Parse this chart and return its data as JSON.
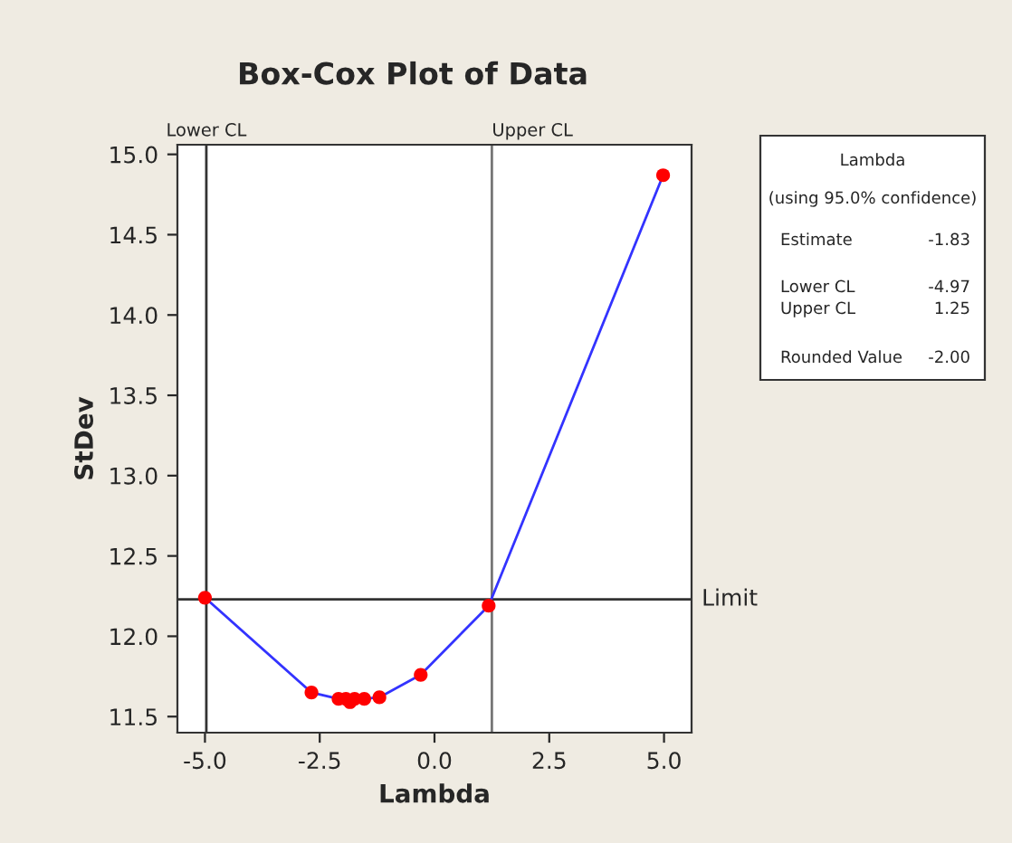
{
  "chart_data": {
    "type": "line",
    "title": "Box-Cox Plot of Data",
    "xlabel": "Lambda",
    "ylabel": "StDev",
    "series": [
      {
        "color": "#3333ff",
        "colors": [
          "#ff0000",
          "#ff0000",
          "#ff0000",
          "#ff0000",
          "#ff0000",
          "#ff0000",
          "#ff0000",
          "#ff0000",
          "#ff0000",
          "#ff0000",
          "#ff0000"
        ],
        "x": [
          -5.0,
          -2.68,
          -2.09,
          -1.93,
          -1.84,
          -1.74,
          -1.53,
          -1.2,
          -0.3,
          1.18,
          4.98
        ],
        "values": [
          12.24,
          11.65,
          11.61,
          11.61,
          11.59,
          11.61,
          11.61,
          11.62,
          11.76,
          12.19,
          14.87
        ]
      }
    ],
    "marker": "circle",
    "grid": false,
    "xlim": [
      -5.6,
      5.6
    ],
    "xticks": [
      {
        "value": -5,
        "label": "-5.0"
      },
      {
        "value": -2.5,
        "label": "-2.5"
      },
      {
        "value": 0,
        "label": "0.0"
      },
      {
        "value": 2.5,
        "label": "2.5"
      },
      {
        "value": 5,
        "label": "5.0"
      }
    ],
    "ylim": [
      11.4,
      15.06
    ],
    "yticks": [
      {
        "value": 11.5,
        "label": "11.5"
      },
      {
        "value": 12,
        "label": "12.0"
      },
      {
        "value": 12.5,
        "label": "12.5"
      },
      {
        "value": 13,
        "label": "13.0"
      },
      {
        "value": 13.5,
        "label": "13.5"
      },
      {
        "value": 14,
        "label": "14.0"
      },
      {
        "value": 14.5,
        "label": "14.5"
      },
      {
        "value": 15,
        "label": "15.0"
      }
    ],
    "ref_lines": [
      {
        "axis": "x",
        "value": -4.97,
        "label": "Lower CL",
        "color": "#333333"
      },
      {
        "axis": "x",
        "value": 1.25,
        "label": "Upper CL",
        "color": "#777777"
      },
      {
        "axis": "y",
        "value": 12.23,
        "label": "Limit",
        "color": "#333333"
      }
    ],
    "annotations": [
      "Lambda",
      "(using 95.0% confidence)",
      "Estimate",
      "-1.83",
      "Lower CL",
      "-4.97",
      "Upper CL",
      "1.25",
      "Rounded Value",
      "-2.00"
    ]
  }
}
